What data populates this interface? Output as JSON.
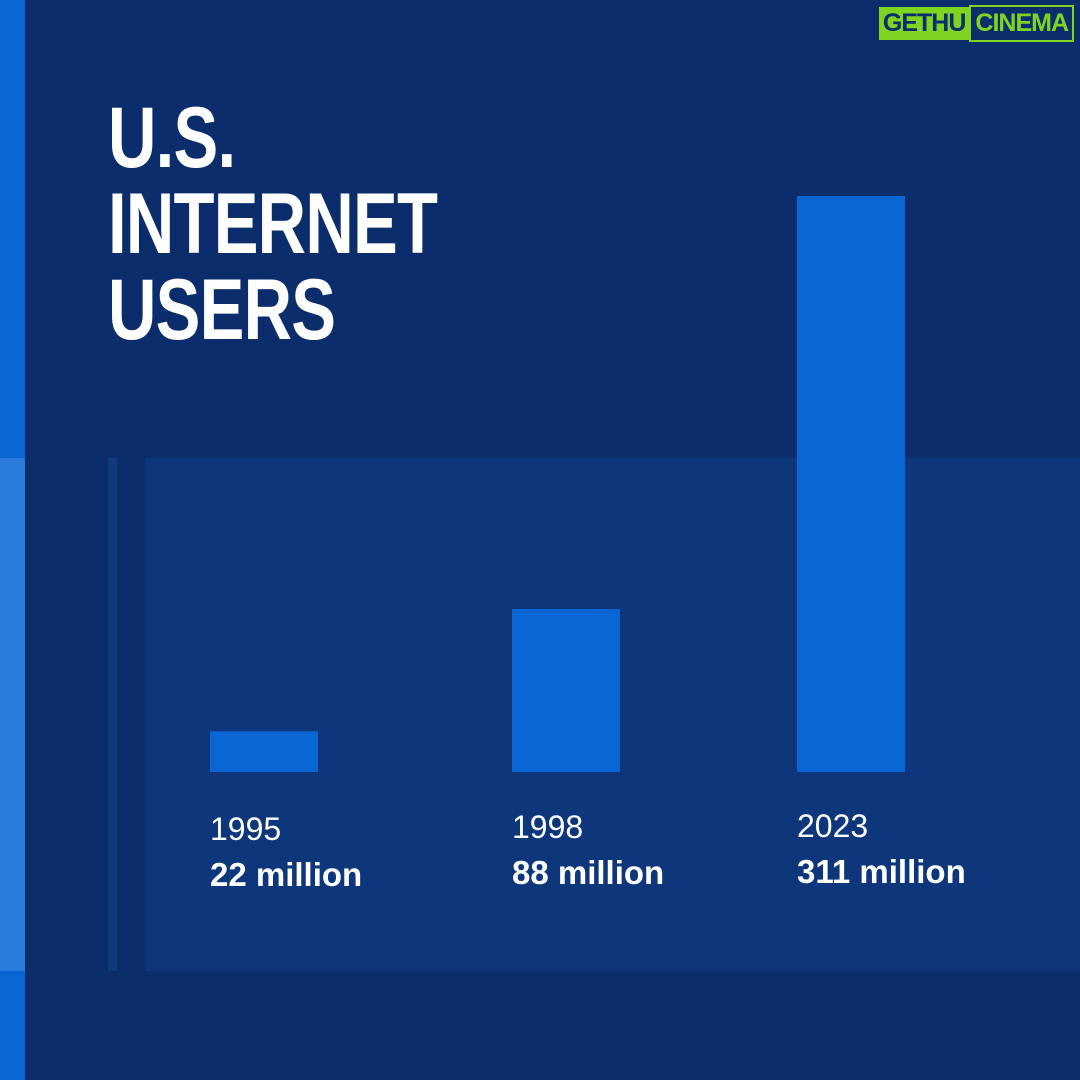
{
  "logo": {
    "part1": "GETHU",
    "part2": "CINEMA"
  },
  "colors": {
    "background": "#0b2d6b",
    "panel": "#0d377a",
    "bar": "#0a66d4",
    "accent": "#7fd321"
  },
  "chart_data": {
    "type": "bar",
    "title_lines": [
      "U.S.",
      "INTERNET",
      "USERS"
    ],
    "categories": [
      "1995",
      "1998",
      "2023"
    ],
    "values": [
      22,
      88,
      311
    ],
    "value_labels": [
      "22 million",
      "88 million",
      "311 million"
    ],
    "unit": "million",
    "ylim": [
      0,
      311
    ],
    "grid": false,
    "legend": "none"
  }
}
